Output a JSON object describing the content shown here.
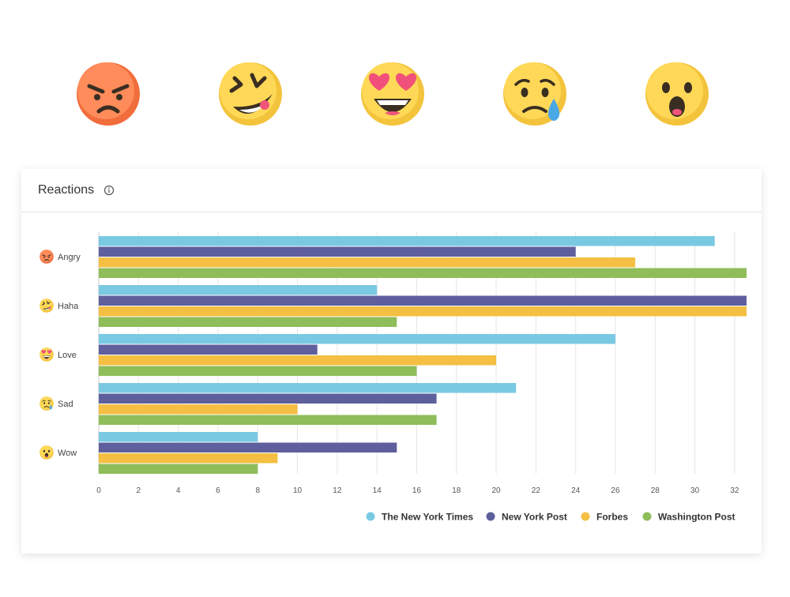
{
  "header": {
    "title": "Reactions",
    "info_icon": "info-icon"
  },
  "emoji_row": [
    "angry-emoji-icon",
    "haha-emoji-icon",
    "love-emoji-icon",
    "sad-emoji-icon",
    "wow-emoji-icon"
  ],
  "colors": {
    "nyt": "#7ac9e2",
    "nyp": "#5e5f9c",
    "forbes": "#f4bf42",
    "wapo": "#8fbd5a"
  },
  "chart_data": {
    "type": "bar",
    "orientation": "horizontal",
    "categories": [
      "Angry",
      "Haha",
      "Love",
      "Sad",
      "Wow"
    ],
    "category_icons": [
      "angry-emoji-icon",
      "haha-emoji-icon",
      "love-emoji-icon",
      "sad-emoji-icon",
      "wow-emoji-icon"
    ],
    "series": [
      {
        "name": "The New York Times",
        "color": "#7ac9e2",
        "values": [
          31,
          14,
          26,
          21,
          8
        ]
      },
      {
        "name": "New York Post",
        "color": "#5e5f9c",
        "values": [
          24,
          33,
          11,
          17,
          15
        ]
      },
      {
        "name": "Forbes",
        "color": "#f4bf42",
        "values": [
          27,
          33,
          20,
          10,
          9
        ]
      },
      {
        "name": "Washington Post",
        "color": "#8fbd5a",
        "values": [
          33,
          15,
          16,
          17,
          8
        ]
      }
    ],
    "x_ticks": [
      "0",
      "2",
      "4",
      "6",
      "8",
      "10",
      "12",
      "14",
      "16",
      "18",
      "20",
      "22",
      "24",
      "26",
      "28",
      "30",
      "32"
    ],
    "xlim": [
      0,
      32.6
    ],
    "grid": true,
    "legend_position": "bottom-right",
    "title": "",
    "xlabel": "",
    "ylabel": ""
  }
}
